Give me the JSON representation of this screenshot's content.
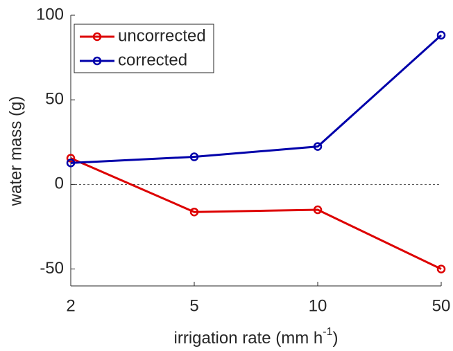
{
  "chart_data": {
    "type": "line",
    "xlabel": "irrigation rate (mm h",
    "xlabel_superscript": "-1",
    "xlabel_suffix": ")",
    "ylabel": "water mass (g)",
    "categories": [
      "2",
      "5",
      "10",
      "50"
    ],
    "series": [
      {
        "name": "uncorrected",
        "color": "#dd0000",
        "values": [
          15.5,
          -16.3,
          -15,
          -50
        ]
      },
      {
        "name": "corrected",
        "color": "#0000aa",
        "values": [
          12.7,
          16.3,
          22.4,
          88.2
        ]
      }
    ],
    "ylim": [
      -60,
      100
    ],
    "yticks": [
      -50,
      0,
      50,
      100
    ],
    "zero_line": true,
    "legend": "upper-left"
  }
}
